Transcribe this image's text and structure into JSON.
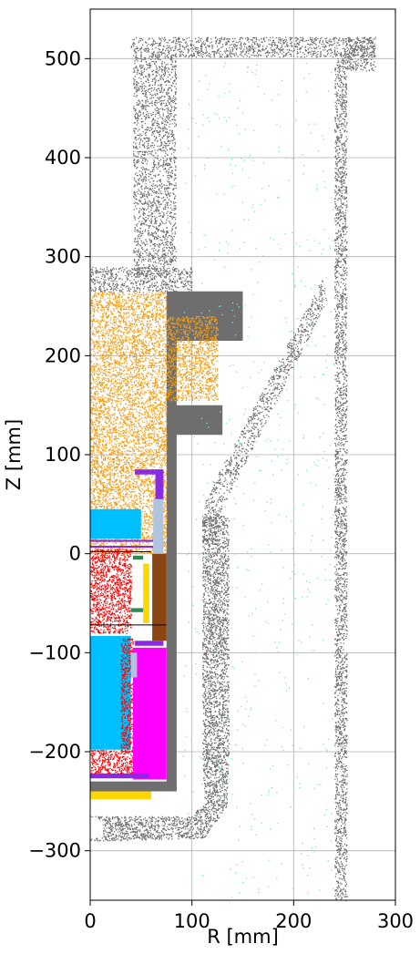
{
  "chart_data": {
    "type": "scatter",
    "title": "",
    "xlabel": "R [mm]",
    "ylabel": "Z [mm]",
    "xlim": [
      0,
      300
    ],
    "ylim": [
      -350,
      550
    ],
    "x_ticks": [
      0,
      100,
      200,
      300
    ],
    "x_tick_labels": [
      "0",
      "100",
      "200",
      "300"
    ],
    "y_ticks": [
      -300,
      -200,
      -100,
      0,
      100,
      200,
      300,
      400,
      500
    ],
    "y_tick_labels": [
      "−300",
      "−200",
      "−100",
      "0",
      "100",
      "200",
      "300",
      "400",
      "500"
    ],
    "grid": true,
    "colors": {
      "gray": "#6e6e6e",
      "orange": "#f39c12",
      "cyan": "#00bfff",
      "red": "#ff0000",
      "magenta": "#ff00ff",
      "purple": "#8a2be2",
      "yellow": "#ffd700",
      "brown": "#8b4513",
      "green": "#2e8b57",
      "lightsteel": "#b0c4de",
      "aqua": "#7fe0d9"
    },
    "regions": [
      {
        "name": "upper-flange",
        "color": "gray",
        "pattern": "scatter",
        "density": 0.55,
        "polys": [
          [
            [
              40,
              522
            ],
            [
              280,
              522
            ],
            [
              280,
              502
            ],
            [
              40,
              502
            ]
          ]
        ]
      },
      {
        "name": "right-flange-corner",
        "color": "gray",
        "pattern": "scatter",
        "density": 0.55,
        "polys": [
          [
            [
              252,
              522
            ],
            [
              280,
              522
            ],
            [
              280,
              488
            ],
            [
              252,
              488
            ]
          ]
        ]
      },
      {
        "name": "outer-vertical-wall",
        "color": "gray",
        "pattern": "scatter",
        "density": 0.65,
        "polys": [
          [
            [
              240,
              505
            ],
            [
              252,
              505
            ],
            [
              252,
              -350
            ],
            [
              240,
              -350
            ]
          ]
        ]
      },
      {
        "name": "inner-vertical-tube",
        "color": "gray",
        "pattern": "scatter",
        "density": 0.5,
        "polys": [
          [
            [
              42,
              505
            ],
            [
              84,
              505
            ],
            [
              84,
              280
            ],
            [
              42,
              280
            ]
          ]
        ]
      },
      {
        "name": "step-block-upper",
        "color": "gray",
        "pattern": "solid",
        "polys": [
          [
            [
              75,
              265
            ],
            [
              150,
              265
            ],
            [
              150,
              215
            ],
            [
              75,
              215
            ]
          ]
        ]
      },
      {
        "name": "step-block-mid",
        "color": "gray",
        "pattern": "solid",
        "polys": [
          [
            [
              75,
              150
            ],
            [
              130,
              150
            ],
            [
              130,
              120
            ],
            [
              75,
              120
            ]
          ]
        ]
      },
      {
        "name": "upper-shoulder",
        "color": "gray",
        "pattern": "scatter",
        "density": 0.55,
        "polys": [
          [
            [
              0,
              290
            ],
            [
              100,
              290
            ],
            [
              100,
              265
            ],
            [
              0,
              265
            ]
          ]
        ]
      },
      {
        "name": "diagonal-pipe",
        "color": "gray",
        "pattern": "scatter",
        "density": 0.45,
        "polys": [
          [
            [
              110,
              10
            ],
            [
              112,
              55
            ],
            [
              228,
              278
            ],
            [
              234,
              258
            ],
            [
              124,
              35
            ],
            [
              124,
              10
            ]
          ]
        ]
      },
      {
        "name": "inner-pipe-vertical",
        "color": "gray",
        "pattern": "scatter",
        "density": 0.75,
        "polys": [
          [
            [
              110,
              40
            ],
            [
              136,
              40
            ],
            [
              136,
              -200
            ],
            [
              110,
              -200
            ]
          ]
        ]
      },
      {
        "name": "pipe-bottom-bend",
        "color": "gray",
        "pattern": "scatter",
        "density": 0.75,
        "polys": [
          [
            [
              0,
              -265
            ],
            [
              100,
              -265
            ],
            [
              112,
              -250
            ],
            [
              110,
              -200
            ],
            [
              136,
              -200
            ],
            [
              134,
              -255
            ],
            [
              112,
              -287
            ],
            [
              0,
              -290
            ]
          ]
        ]
      },
      {
        "name": "lower-gray-support",
        "color": "gray",
        "pattern": "solid",
        "polys": [
          [
            [
              75,
              260
            ],
            [
              85,
              260
            ],
            [
              85,
              -240
            ],
            [
              75,
              -240
            ]
          ],
          [
            [
              0,
              -230
            ],
            [
              85,
              -230
            ],
            [
              85,
              -240
            ],
            [
              0,
              -240
            ]
          ]
        ]
      },
      {
        "name": "orange-region",
        "color": "orange",
        "pattern": "scatter",
        "density": 0.7,
        "polys": [
          [
            [
              0,
              265
            ],
            [
              75,
              265
            ],
            [
              75,
              240
            ],
            [
              125,
              240
            ],
            [
              125,
              155
            ],
            [
              75,
              155
            ],
            [
              75,
              0
            ],
            [
              0,
              0
            ]
          ]
        ]
      },
      {
        "name": "cyan-upper-block",
        "color": "cyan",
        "pattern": "solid",
        "polys": [
          [
            [
              0,
              45
            ],
            [
              50,
              45
            ],
            [
              50,
              15
            ],
            [
              0,
              15
            ]
          ]
        ]
      },
      {
        "name": "red-upper-region",
        "color": "red",
        "pattern": "scatter",
        "density": 0.85,
        "polys": [
          [
            [
              0,
              5
            ],
            [
              40,
              5
            ],
            [
              40,
              -80
            ],
            [
              0,
              -80
            ]
          ]
        ]
      },
      {
        "name": "cyan-lower-block",
        "color": "cyan",
        "pattern": "solid",
        "polys": [
          [
            [
              0,
              -83
            ],
            [
              40,
              -83
            ],
            [
              40,
              -198
            ],
            [
              0,
              -198
            ]
          ]
        ]
      },
      {
        "name": "red-lower-region",
        "color": "red",
        "pattern": "scatter",
        "density": 0.85,
        "polys": [
          [
            [
              0,
              -198
            ],
            [
              45,
              -198
            ],
            [
              45,
              -225
            ],
            [
              0,
              -225
            ]
          ],
          [
            [
              30,
              -85
            ],
            [
              42,
              -85
            ],
            [
              42,
              -200
            ],
            [
              30,
              -200
            ]
          ]
        ]
      },
      {
        "name": "magenta-block",
        "color": "magenta",
        "pattern": "solid",
        "polys": [
          [
            [
              42,
              -95
            ],
            [
              75,
              -95
            ],
            [
              75,
              -228
            ],
            [
              42,
              -228
            ]
          ]
        ]
      },
      {
        "name": "brown-block",
        "color": "brown",
        "pattern": "solid",
        "polys": [
          [
            [
              61,
              0
            ],
            [
              75,
              0
            ],
            [
              75,
              -88
            ],
            [
              61,
              -88
            ]
          ]
        ]
      },
      {
        "name": "yellow-vertical-strip",
        "color": "yellow",
        "pattern": "solid",
        "polys": [
          [
            [
              52,
              -10
            ],
            [
              58,
              -10
            ],
            [
              58,
              -70
            ],
            [
              52,
              -70
            ]
          ]
        ]
      },
      {
        "name": "yellow-bottom-strip",
        "color": "yellow",
        "pattern": "solid",
        "polys": [
          [
            [
              0,
              -240
            ],
            [
              60,
              -240
            ],
            [
              60,
              -248
            ],
            [
              0,
              -248
            ]
          ]
        ]
      },
      {
        "name": "purple-top-bracket",
        "color": "purple",
        "pattern": "solid",
        "polys": [
          [
            [
              44,
              85
            ],
            [
              72,
              85
            ],
            [
              72,
              80
            ],
            [
              44,
              80
            ]
          ],
          [
            [
              64,
              85
            ],
            [
              72,
              85
            ],
            [
              72,
              55
            ],
            [
              64,
              55
            ]
          ]
        ]
      },
      {
        "name": "purple-horizontal-bars",
        "color": "purple",
        "pattern": "solid",
        "polys": [
          [
            [
              0,
              14
            ],
            [
              62,
              14
            ],
            [
              62,
              12
            ],
            [
              0,
              12
            ]
          ],
          [
            [
              0,
              8
            ],
            [
              62,
              8
            ],
            [
              62,
              6
            ],
            [
              0,
              6
            ]
          ]
        ]
      },
      {
        "name": "purple-lower-bars",
        "color": "purple",
        "pattern": "solid",
        "polys": [
          [
            [
              0,
              -222
            ],
            [
              58,
              -222
            ],
            [
              58,
              -227
            ],
            [
              0,
              -227
            ]
          ],
          [
            [
              44,
              -88
            ],
            [
              72,
              -88
            ],
            [
              72,
              -93
            ],
            [
              44,
              -93
            ]
          ]
        ]
      },
      {
        "name": "steel-frame",
        "color": "lightsteel",
        "pattern": "solid",
        "polys": [
          [
            [
              62,
              55
            ],
            [
              72,
              55
            ],
            [
              72,
              0
            ],
            [
              62,
              0
            ]
          ],
          [
            [
              40,
              -100
            ],
            [
              46,
              -100
            ],
            [
              46,
              -125
            ],
            [
              40,
              -125
            ]
          ]
        ]
      },
      {
        "name": "green-markers",
        "color": "green",
        "pattern": "solid",
        "polys": [
          [
            [
              42,
              -2
            ],
            [
              52,
              -2
            ],
            [
              52,
              -6
            ],
            [
              42,
              -6
            ]
          ],
          [
            [
              40,
              -55
            ],
            [
              52,
              -55
            ],
            [
              52,
              -59
            ],
            [
              40,
              -59
            ]
          ]
        ]
      },
      {
        "name": "cyan-sparse-scatter",
        "color": "aqua",
        "pattern": "scatter",
        "density": 0.012,
        "polys": [
          [
            [
              90,
              500
            ],
            [
              240,
              500
            ],
            [
              240,
              -350
            ],
            [
              90,
              -350
            ]
          ]
        ]
      }
    ]
  }
}
